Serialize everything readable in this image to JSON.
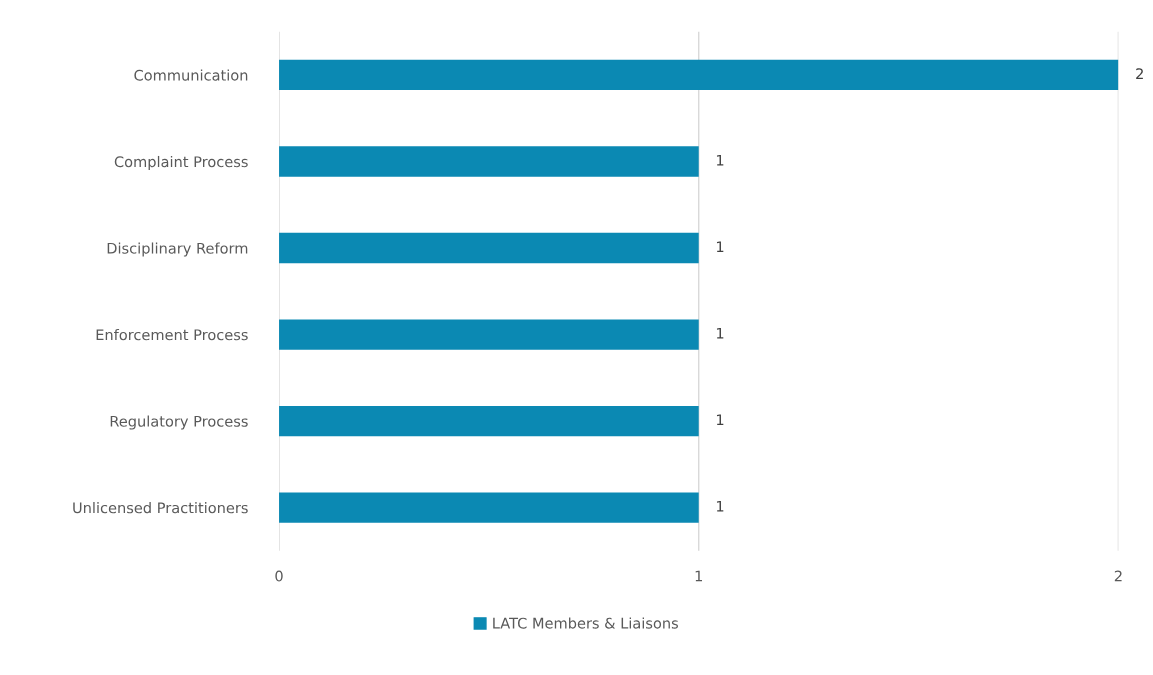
{
  "chart_data": {
    "type": "bar",
    "orientation": "horizontal",
    "categories": [
      "Communication",
      "Complaint Process",
      "Disciplinary Reform",
      "Enforcement Process",
      "Regulatory Process",
      "Unlicensed Practitioners"
    ],
    "series": [
      {
        "name": "LATC Members & Liaisons",
        "color": "#0b89b3",
        "values": [
          2,
          1,
          1,
          1,
          1,
          1
        ]
      }
    ],
    "xlim": [
      0,
      2
    ],
    "xticks": [
      0,
      1,
      2
    ],
    "grid": "x",
    "legend": "bottom",
    "data_labels": true
  }
}
